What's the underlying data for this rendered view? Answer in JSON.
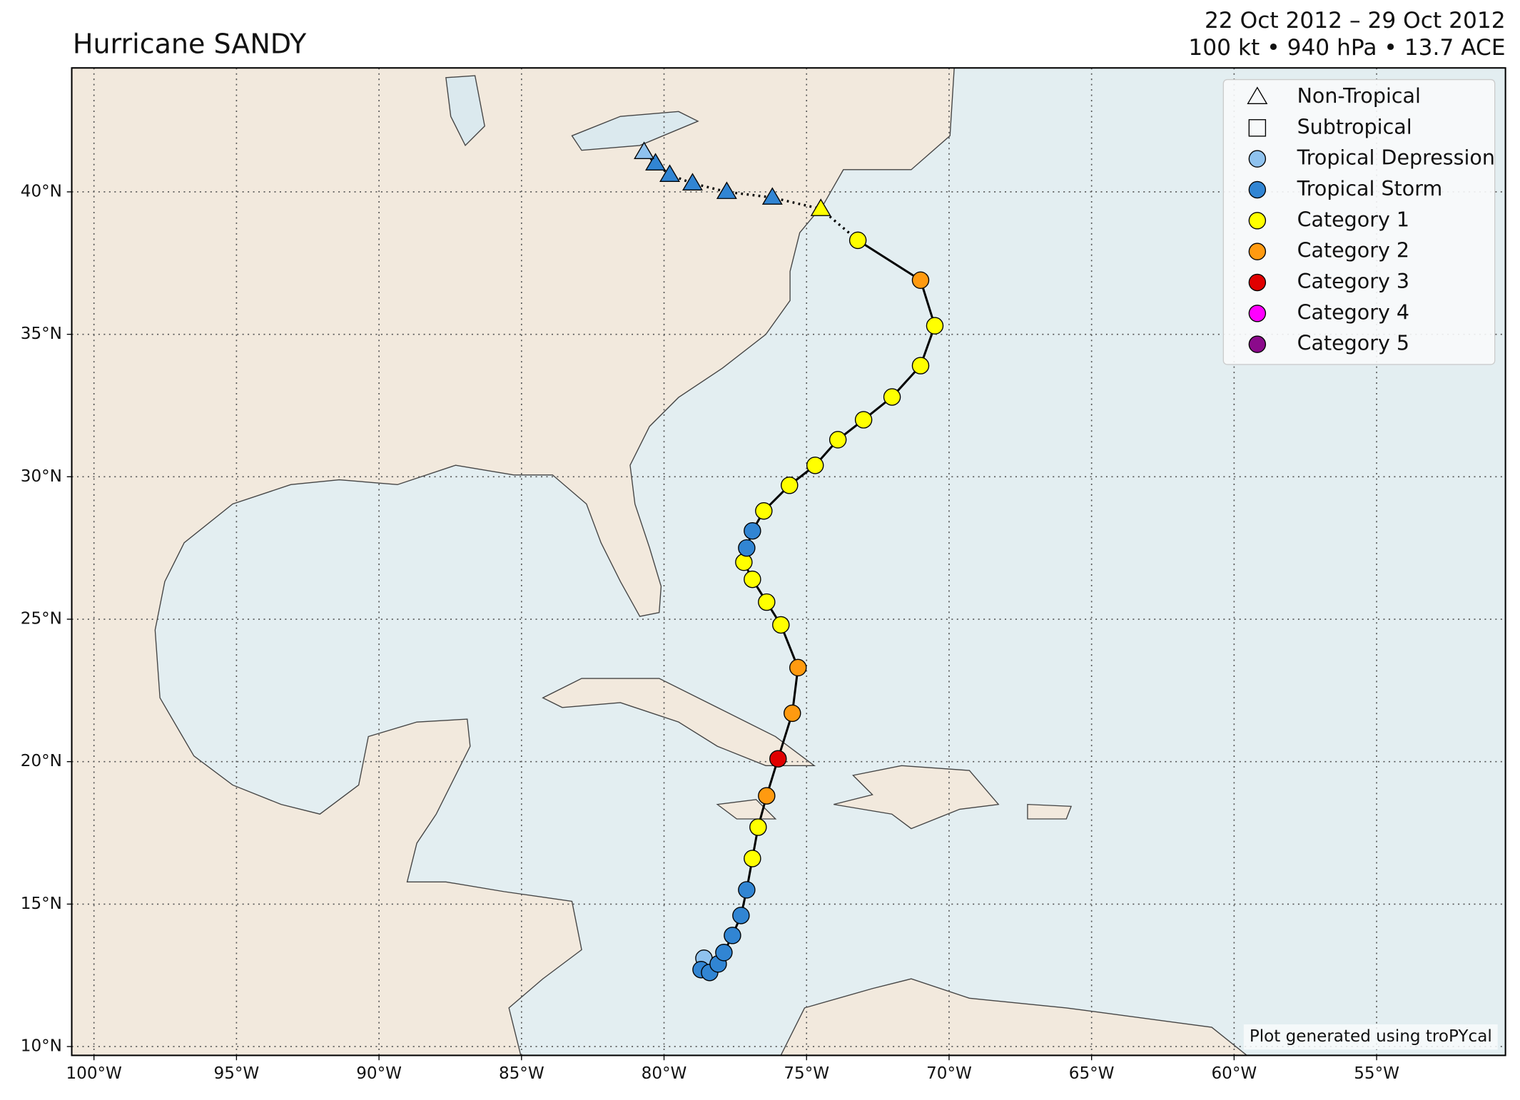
{
  "chart_data": {
    "type": "track",
    "title": "Hurricane SANDY",
    "date_range": "22 Oct 2012 – 29 Oct 2012",
    "summary": "100 kt • 940 hPa • 13.7 ACE",
    "credit": "Plot generated using troPYcal",
    "xlim": [
      -100.78,
      -50.48
    ],
    "ylim": [
      9.69,
      44.35
    ],
    "xticks": [
      {
        "value": -100,
        "label": "100°W"
      },
      {
        "value": -95,
        "label": "95°W"
      },
      {
        "value": -90,
        "label": "90°W"
      },
      {
        "value": -85,
        "label": "85°W"
      },
      {
        "value": -80,
        "label": "80°W"
      },
      {
        "value": -75,
        "label": "75°W"
      },
      {
        "value": -70,
        "label": "70°W"
      },
      {
        "value": -65,
        "label": "65°W"
      },
      {
        "value": -60,
        "label": "60°W"
      },
      {
        "value": -55,
        "label": "55°W"
      }
    ],
    "yticks": [
      {
        "value": 10,
        "label": "10°N"
      },
      {
        "value": 15,
        "label": "15°N"
      },
      {
        "value": 20,
        "label": "20°N"
      },
      {
        "value": 25,
        "label": "25°N"
      },
      {
        "value": 30,
        "label": "30°N"
      },
      {
        "value": 35,
        "label": "35°N"
      },
      {
        "value": 40,
        "label": "40°N"
      }
    ],
    "grid": true,
    "legend": [
      {
        "name": "Non-Tropical",
        "marker": "triangle"
      },
      {
        "name": "Subtropical",
        "marker": "square"
      },
      {
        "name": "Tropical Depression",
        "marker": "circle",
        "color": "#8fc2ee"
      },
      {
        "name": "Tropical Storm",
        "marker": "circle",
        "color": "#3185d3"
      },
      {
        "name": "Category 1",
        "marker": "circle",
        "color": "#ffff00"
      },
      {
        "name": "Category 2",
        "marker": "circle",
        "color": "#ff9a10"
      },
      {
        "name": "Category 3",
        "marker": "circle",
        "color": "#e00000"
      },
      {
        "name": "Category 4",
        "marker": "circle",
        "color": "#ff00ff"
      },
      {
        "name": "Category 5",
        "marker": "circle",
        "color": "#8b0a8b"
      }
    ],
    "track": {
      "lon": [
        -78.6,
        -78.7,
        -78.4,
        -78.1,
        -77.9,
        -77.6,
        -77.3,
        -77.1,
        -76.9,
        -76.7,
        -76.4,
        -76.0,
        -75.5,
        -75.3,
        -75.9,
        -76.4,
        -76.9,
        -77.2,
        -77.1,
        -76.9,
        -76.5,
        -75.6,
        -74.7,
        -73.9,
        -73.0,
        -72.0,
        -71.0,
        -70.5,
        -71.0,
        -73.2,
        -74.5,
        -76.2,
        -77.8,
        -79.0,
        -79.8,
        -80.3,
        -80.7
      ],
      "lat": [
        13.1,
        12.7,
        12.6,
        12.9,
        13.3,
        13.9,
        14.6,
        15.5,
        16.6,
        17.7,
        18.8,
        20.1,
        21.7,
        23.3,
        24.8,
        25.6,
        26.4,
        27.0,
        27.5,
        28.1,
        28.8,
        29.7,
        30.4,
        31.3,
        32.0,
        32.8,
        33.9,
        35.3,
        36.9,
        38.3,
        39.4,
        39.8,
        40.0,
        40.3,
        40.6,
        41.0,
        41.4
      ],
      "category": [
        "Tropical Depression",
        "Tropical Storm",
        "Tropical Storm",
        "Tropical Storm",
        "Tropical Storm",
        "Tropical Storm",
        "Tropical Storm",
        "Tropical Storm",
        "Category 1",
        "Category 1",
        "Category 2",
        "Category 3",
        "Category 2",
        "Category 2",
        "Category 1",
        "Category 1",
        "Category 1",
        "Category 1",
        "Tropical Storm",
        "Tropical Storm",
        "Category 1",
        "Category 1",
        "Category 1",
        "Category 1",
        "Category 1",
        "Category 1",
        "Category 1",
        "Category 1",
        "Category 2",
        "Category 1",
        "Category 1",
        "Tropical Storm",
        "Tropical Storm",
        "Tropical Storm",
        "Tropical Storm",
        "Tropical Storm",
        "Tropical Depression"
      ],
      "non_tropical": [
        false,
        false,
        false,
        false,
        false,
        false,
        false,
        false,
        false,
        false,
        false,
        false,
        false,
        false,
        false,
        false,
        false,
        false,
        false,
        false,
        false,
        false,
        false,
        false,
        false,
        false,
        false,
        false,
        false,
        false,
        true,
        true,
        true,
        true,
        true,
        true,
        true
      ]
    }
  }
}
